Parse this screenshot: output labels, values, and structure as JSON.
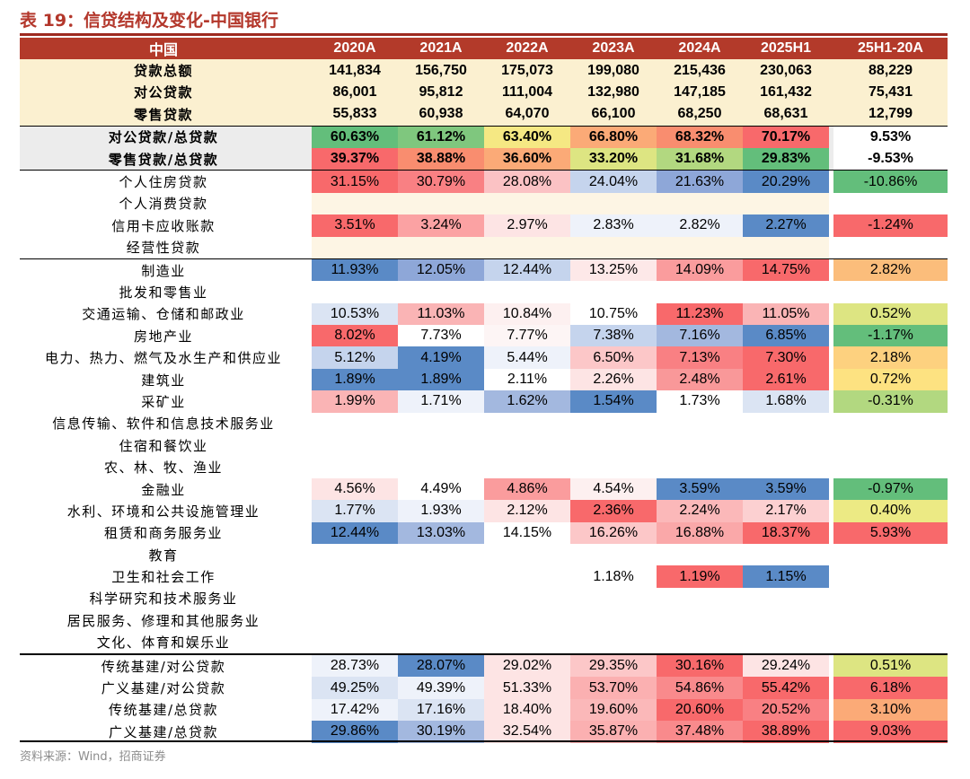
{
  "title": "表 19：信贷结构及变化-中国银行",
  "source": "资料来源：Wind，招商证券",
  "header": [
    "中国",
    "2020A",
    "2021A",
    "2022A",
    "2023A",
    "2024A",
    "2025H1",
    "25H1-20A"
  ],
  "rows": [
    {
      "label": "贷款总额",
      "values": [
        "141,834",
        "156,750",
        "175,073",
        "199,080",
        "215,436",
        "230,063",
        "88,229"
      ],
      "bold": true,
      "tan": true,
      "colors": []
    },
    {
      "label": "对公贷款",
      "values": [
        "86,001",
        "95,812",
        "111,004",
        "132,980",
        "147,185",
        "161,432",
        "75,431"
      ],
      "bold": true,
      "tan": true,
      "colors": []
    },
    {
      "label": "零售贷款",
      "values": [
        "55,833",
        "60,938",
        "64,070",
        "66,100",
        "68,250",
        "68,631",
        "12,799"
      ],
      "bold": true,
      "tan": true,
      "colors": []
    },
    {
      "label": "对公贷款/总贷款",
      "values": [
        "60.63%",
        "61.12%",
        "63.40%",
        "66.80%",
        "68.32%",
        "70.17%",
        "9.53%"
      ],
      "bold": true,
      "gray": true,
      "top": true,
      "colors": [
        "#63be7b",
        "#7fc77e",
        "#f5e883",
        "#fbaa77",
        "#f98d6f",
        "#f8696b",
        "#ffffff"
      ]
    },
    {
      "label": "零售贷款/总贷款",
      "values": [
        "39.37%",
        "38.88%",
        "36.60%",
        "33.20%",
        "31.68%",
        "29.83%",
        "-9.53%"
      ],
      "bold": true,
      "gray": true,
      "colors": [
        "#f8696b",
        "#f98d6f",
        "#fbaa77",
        "#dde582",
        "#b2d880",
        "#63be7b",
        "#ffffff"
      ]
    },
    {
      "label": "个人住房贷款",
      "values": [
        "31.15%",
        "30.79%",
        "28.08%",
        "24.04%",
        "21.63%",
        "20.29%",
        "-10.86%"
      ],
      "top": true,
      "colors": [
        "#f8696b",
        "#f98083",
        "#fbc2c4",
        "#c5d4ed",
        "#8ea7d8",
        "#5a8ac6",
        "#63be7b"
      ]
    },
    {
      "label": "个人消费贷款",
      "values": [
        "",
        "",
        "",
        "",
        "",
        "",
        ""
      ],
      "colors": [
        "#fdf5e4",
        "#fdf5e4",
        "#fdf5e4",
        "#fdf5e4",
        "#fdf5e4",
        "#fdf5e4",
        "#ffffff"
      ]
    },
    {
      "label": "信用卡应收账款",
      "values": [
        "3.51%",
        "3.24%",
        "2.97%",
        "2.83%",
        "2.82%",
        "2.27%",
        "-1.24%"
      ],
      "colors": [
        "#f8696b",
        "#fba2a3",
        "#fde4e4",
        "#eef2fa",
        "#eef2fa",
        "#5a8ac6",
        "#f8696b"
      ]
    },
    {
      "label": "经营性贷款",
      "values": [
        "",
        "",
        "",
        "",
        "",
        "",
        ""
      ],
      "colors": [
        "#fdf5e4",
        "#fdf5e4",
        "#fdf5e4",
        "#fdf5e4",
        "#fdf5e4",
        "#fdf5e4",
        "#ffffff"
      ]
    },
    {
      "label": "制造业",
      "values": [
        "11.93%",
        "12.05%",
        "12.44%",
        "13.25%",
        "14.09%",
        "14.75%",
        "2.82%"
      ],
      "top": true,
      "colors": [
        "#5a8ac6",
        "#8ea7d8",
        "#c5d4ed",
        "#fde8e8",
        "#fa9c9d",
        "#f8696b",
        "#fbbd7b"
      ]
    },
    {
      "label": "批发和零售业",
      "values": [
        "",
        "",
        "",
        "",
        "",
        "",
        ""
      ],
      "colors": []
    },
    {
      "label": "交通运输、仓储和邮政业",
      "values": [
        "10.53%",
        "11.03%",
        "10.84%",
        "10.75%",
        "11.23%",
        "11.05%",
        "0.52%"
      ],
      "colors": [
        "#dbe4f3",
        "#fab4b5",
        "#fdf0f0",
        "#ffffff",
        "#f8696b",
        "#fab4b5",
        "#dde582"
      ]
    },
    {
      "label": "房地产业",
      "values": [
        "8.02%",
        "7.73%",
        "7.77%",
        "7.38%",
        "7.16%",
        "6.85%",
        "-1.17%"
      ],
      "colors": [
        "#f8696b",
        "#ffffff",
        "#fdf5f5",
        "#c5d4ed",
        "#a3b8df",
        "#5a8ac6",
        "#63be7b"
      ]
    },
    {
      "label": "电力、热力、燃气及水生产和供应业",
      "values": [
        "5.12%",
        "4.19%",
        "5.44%",
        "6.50%",
        "7.13%",
        "7.30%",
        "2.18%"
      ],
      "colors": [
        "#c5d4ed",
        "#5a8ac6",
        "#eef2fa",
        "#fcc7c8",
        "#f98083",
        "#f8696b",
        "#fdd17f"
      ]
    },
    {
      "label": "建筑业",
      "values": [
        "1.89%",
        "1.89%",
        "2.11%",
        "2.26%",
        "2.48%",
        "2.61%",
        "0.72%"
      ],
      "colors": [
        "#5a8ac6",
        "#5a8ac6",
        "#ffffff",
        "#fde4e4",
        "#f99899",
        "#f8696b",
        "#fde281"
      ]
    },
    {
      "label": "采矿业",
      "values": [
        "1.99%",
        "1.71%",
        "1.62%",
        "1.54%",
        "1.73%",
        "1.68%",
        "-0.31%"
      ],
      "colors": [
        "#fab4b5",
        "#eef2fa",
        "#a3b8df",
        "#5a8ac6",
        "#ffffff",
        "#dbe4f3",
        "#b2d880"
      ]
    },
    {
      "label": "信息传输、软件和信息技术服务业",
      "values": [
        "",
        "",
        "",
        "",
        "",
        "",
        ""
      ],
      "colors": []
    },
    {
      "label": "住宿和餐饮业",
      "values": [
        "",
        "",
        "",
        "",
        "",
        "",
        ""
      ],
      "colors": []
    },
    {
      "label": "农、林、牧、渔业",
      "values": [
        "",
        "",
        "",
        "",
        "",
        "",
        ""
      ],
      "colors": []
    },
    {
      "label": "金融业",
      "values": [
        "4.56%",
        "4.49%",
        "4.86%",
        "4.54%",
        "3.59%",
        "3.59%",
        "-0.97%"
      ],
      "colors": [
        "#fde4e4",
        "#ffffff",
        "#fa9c9d",
        "#fdf0f0",
        "#5a8ac6",
        "#5a8ac6",
        "#63be7b"
      ]
    },
    {
      "label": "水利、环境和公共设施管理业",
      "values": [
        "1.77%",
        "1.93%",
        "2.12%",
        "2.36%",
        "2.24%",
        "2.17%",
        "0.40%"
      ],
      "colors": [
        "#dbe4f3",
        "#eef2fa",
        "#fde4e4",
        "#f8696b",
        "#fbb8b9",
        "#fcd0d1",
        "#ecea84"
      ]
    },
    {
      "label": "租赁和商务服务业",
      "values": [
        "12.44%",
        "13.03%",
        "14.15%",
        "16.26%",
        "16.88%",
        "18.37%",
        "5.93%"
      ],
      "colors": [
        "#5a8ac6",
        "#a3b8df",
        "#ffffff",
        "#fcc7c8",
        "#faa8a9",
        "#f8696b",
        "#f8696b"
      ]
    },
    {
      "label": "教育",
      "values": [
        "",
        "",
        "",
        "",
        "",
        "",
        ""
      ],
      "colors": []
    },
    {
      "label": "卫生和社会工作",
      "values": [
        "",
        "",
        "",
        "1.18%",
        "1.19%",
        "1.15%",
        ""
      ],
      "colors": [
        "",
        "",
        "",
        "#ffffff",
        "#f8696b",
        "#5a8ac6",
        ""
      ]
    },
    {
      "label": "科学研究和技术服务业",
      "values": [
        "",
        "",
        "",
        "",
        "",
        "",
        ""
      ],
      "colors": []
    },
    {
      "label": "居民服务、修理和其他服务业",
      "values": [
        "",
        "",
        "",
        "",
        "",
        "",
        ""
      ],
      "colors": []
    },
    {
      "label": "文化、体育和娱乐业",
      "values": [
        "",
        "",
        "",
        "",
        "",
        "",
        ""
      ],
      "colors": []
    },
    {
      "label": "传统基建/对公贷款",
      "values": [
        "28.73%",
        "28.07%",
        "29.02%",
        "29.35%",
        "30.16%",
        "29.24%",
        "0.51%"
      ],
      "top2": true,
      "colors": [
        "#eef2fa",
        "#5a8ac6",
        "#fde4e4",
        "#fcc7c8",
        "#f8696b",
        "#fde4e4",
        "#dde582"
      ]
    },
    {
      "label": "广义基建/对公贷款",
      "values": [
        "49.25%",
        "49.39%",
        "51.33%",
        "53.70%",
        "54.86%",
        "55.42%",
        "6.18%"
      ],
      "colors": [
        "#dbe4f3",
        "#eef2fa",
        "#fde4e4",
        "#fbb0b1",
        "#f98a8c",
        "#f8696b",
        "#f8696b"
      ]
    },
    {
      "label": "传统基建/总贷款",
      "values": [
        "17.42%",
        "17.16%",
        "18.40%",
        "19.60%",
        "20.60%",
        "20.52%",
        "3.10%"
      ],
      "colors": [
        "#eef2fa",
        "#dbe4f3",
        "#fde4e4",
        "#fbb8b9",
        "#f8696b",
        "#f98083",
        "#fbaa77"
      ]
    },
    {
      "label": "广义基建/总贷款",
      "values": [
        "29.86%",
        "30.19%",
        "32.54%",
        "35.87%",
        "37.48%",
        "38.89%",
        "9.03%"
      ],
      "colors": [
        "#5a8ac6",
        "#a3b8df",
        "#fde4e4",
        "#fbb0b1",
        "#f98a8c",
        "#f8696b",
        "#f8696b"
      ]
    }
  ]
}
